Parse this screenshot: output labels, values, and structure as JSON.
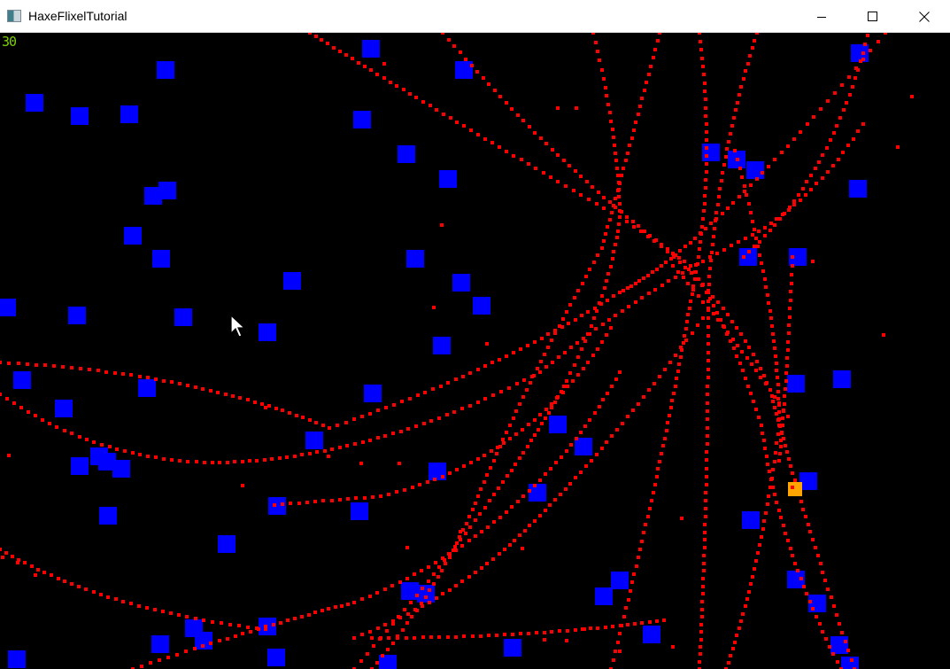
{
  "window": {
    "title": "HaxeFlixelTutorial",
    "minimize_icon": "minimize-icon",
    "maximize_icon": "maximize-icon",
    "close_icon": "close-icon"
  },
  "hud": {
    "fps": "30",
    "fps_color": "#7fd000"
  },
  "colors": {
    "background": "#000000",
    "enemy": "#0000ff",
    "bullet": "#ff0000",
    "player": "#ffa500"
  }
}
